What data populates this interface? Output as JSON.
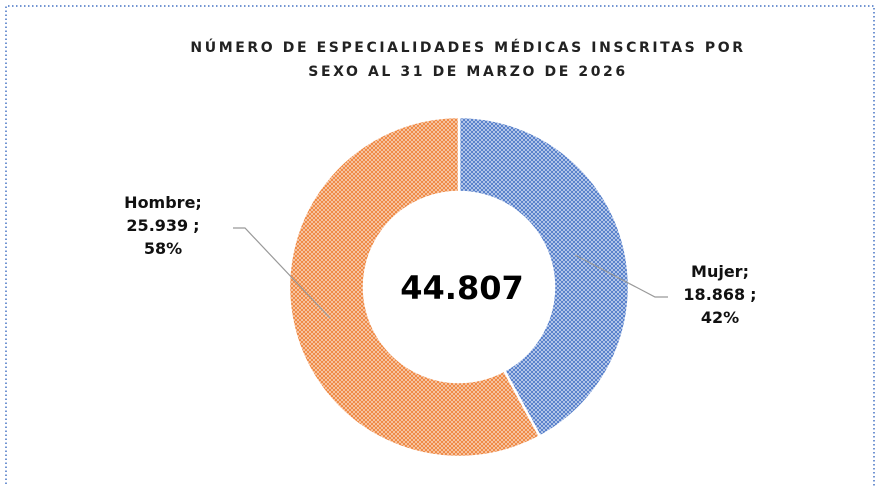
{
  "chart_data": {
    "type": "donut",
    "title": [
      "NÚMERO DE ESPECIALIDADES MÉDICAS INSCRITAS POR",
      "SEXO AL 31 DE MARZO DE 2026"
    ],
    "categories": [
      "Mujer",
      "Hombre"
    ],
    "values": [
      18868,
      25939
    ],
    "value_labels": [
      "18.868",
      "25.939"
    ],
    "percentages": [
      42,
      58
    ],
    "percentage_labels": [
      "42%",
      "58%"
    ],
    "label_separator": ";",
    "colors": [
      "#4472c4",
      "#ed7d31"
    ],
    "total": 44807,
    "total_label": "44.807"
  }
}
